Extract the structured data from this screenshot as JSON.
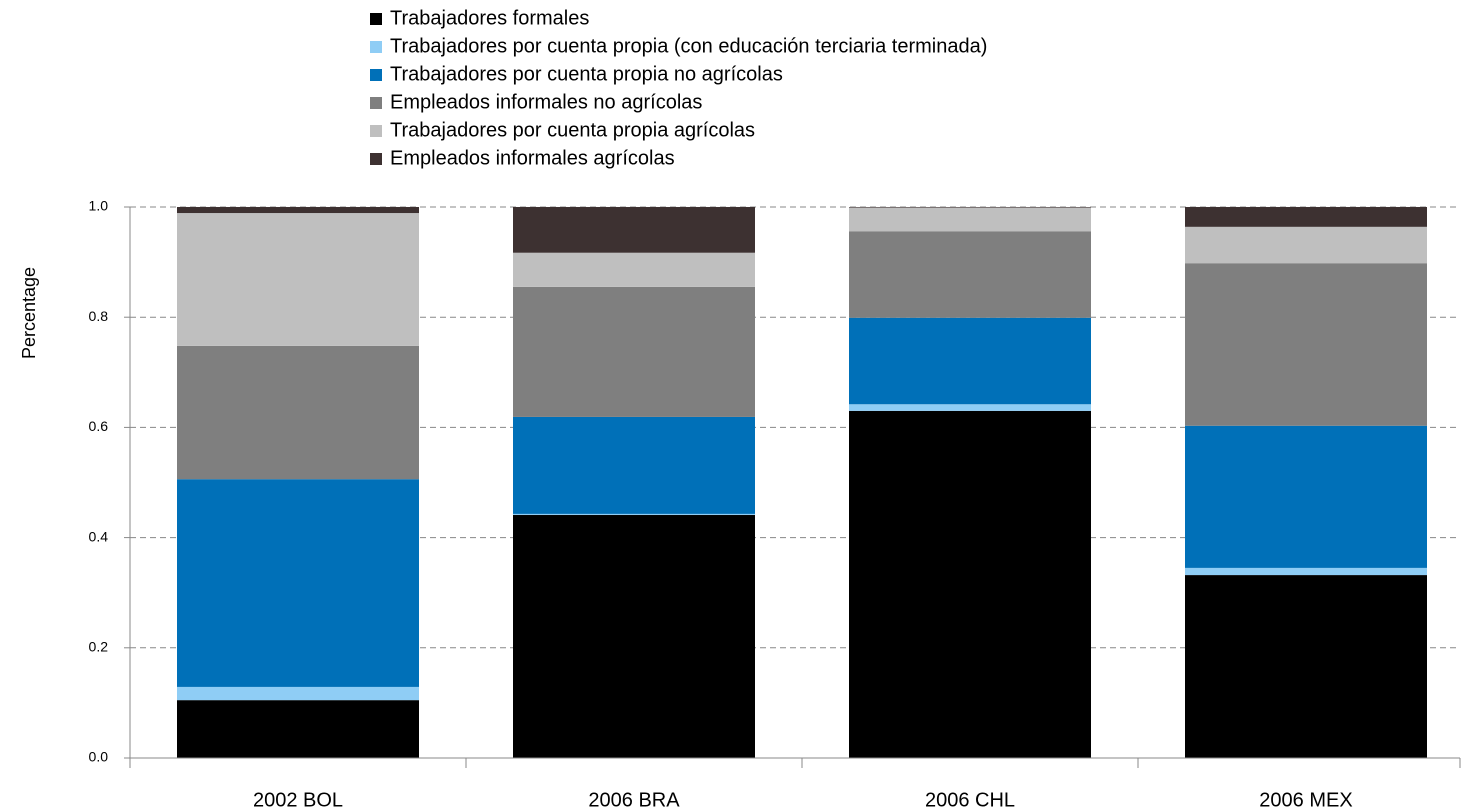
{
  "chart_data": {
    "type": "stacked_bar",
    "y_label": "Percentage",
    "categories": [
      "2002 BOL",
      "2006 BRA",
      "2006 CHL",
      "2006 MEX"
    ],
    "series": [
      {
        "name": "Trabajadores formales",
        "color": "#000000",
        "values": [
          0.105,
          0.441,
          0.63,
          0.332
        ]
      },
      {
        "name": "Trabajadores por cuenta propia (con educación terciaria terminada)",
        "color": "#8fcdf5",
        "values": [
          0.024,
          0.002,
          0.012,
          0.013
        ]
      },
      {
        "name": "Trabajadores por cuenta propia no agrícolas",
        "color": "#0070b8",
        "values": [
          0.377,
          0.176,
          0.157,
          0.258
        ]
      },
      {
        "name": "Empleados informales no agrícolas",
        "color": "#7f7f7f",
        "values": [
          0.242,
          0.236,
          0.157,
          0.295
        ]
      },
      {
        "name": "Trabajadores por cuenta propia agrícolas",
        "color": "#bfbfbf",
        "values": [
          0.241,
          0.062,
          0.043,
          0.066
        ]
      },
      {
        "name": "Empleados informales agrícolas",
        "color": "#3d3131",
        "values": [
          0.011,
          0.083,
          0.001,
          0.036
        ]
      }
    ],
    "ylim": [
      0,
      1
    ],
    "yticks": [
      {
        "value": 0,
        "label": "0.0"
      },
      {
        "value": 0.2,
        "label": "0.2"
      },
      {
        "value": 0.4,
        "label": "0.4"
      },
      {
        "value": 0.6,
        "label": "0.6"
      },
      {
        "value": 0.8,
        "label": "0.8"
      },
      {
        "value": 1,
        "label": "1.0"
      }
    ],
    "grid": true
  }
}
